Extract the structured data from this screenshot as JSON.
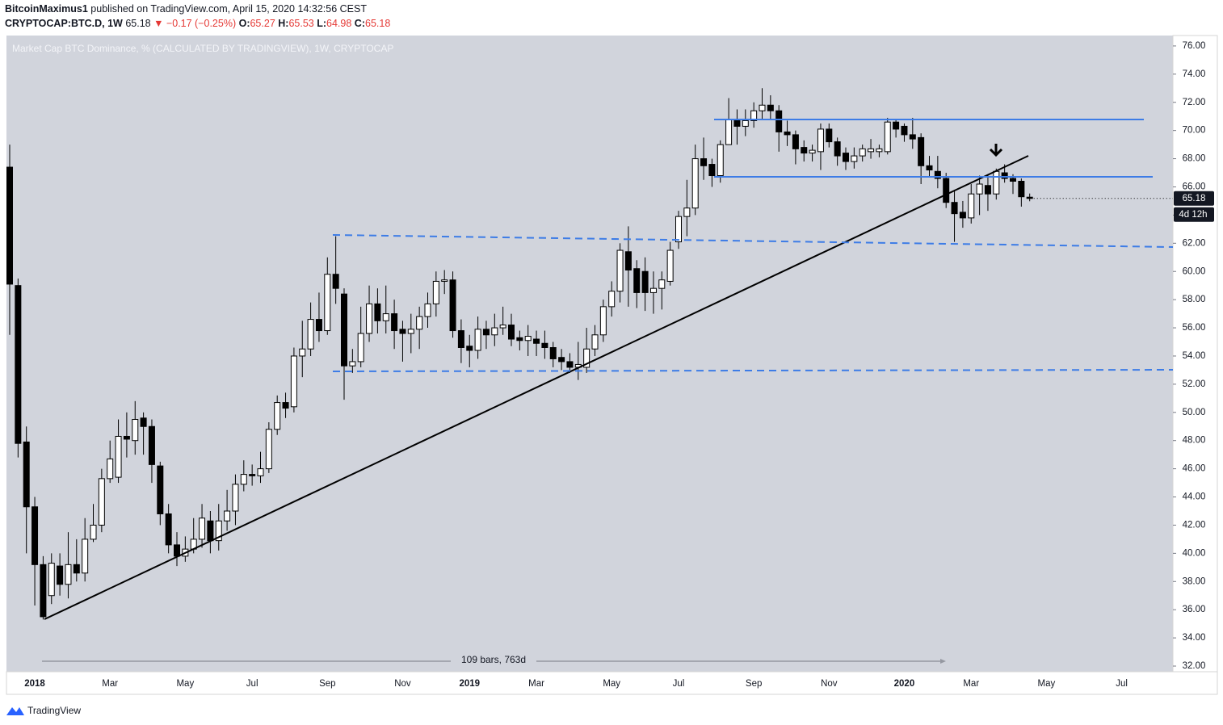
{
  "header": {
    "author": "BitcoinMaximus1",
    "published": "published on TradingView.com, April 15, 2020 14:32:56 CEST",
    "symbol": "CRYPTOCAP:BTC.D, 1W",
    "last": "65.18",
    "change": "▼ −0.17 (−0.25%)",
    "ohlc": [
      {
        "label": "O:",
        "value": "65.27"
      },
      {
        "label": "H:",
        "value": "65.53"
      },
      {
        "label": "L:",
        "value": "64.98"
      },
      {
        "label": "C:",
        "value": "65.18"
      }
    ]
  },
  "footer": {
    "brand": "TradingView"
  },
  "chart_data": {
    "type": "candlestick",
    "title": "Market Cap BTC Dominance, % (CALCULATED BY TRADINGVIEW), 1W, CRYPTOCAP",
    "categories": [
      null,
      null,
      null,
      "2018",
      null,
      null,
      null,
      null,
      null,
      null,
      null,
      null,
      "Mar",
      null,
      null,
      null,
      null,
      null,
      null,
      null,
      null,
      "May",
      null,
      null,
      null,
      null,
      null,
      null,
      null,
      "Jul",
      null,
      null,
      null,
      null,
      null,
      null,
      null,
      null,
      "Sep",
      null,
      null,
      null,
      null,
      null,
      null,
      null,
      null,
      "Nov",
      null,
      null,
      null,
      null,
      null,
      null,
      null,
      "2019",
      null,
      null,
      null,
      null,
      null,
      null,
      null,
      "Mar",
      null,
      null,
      null,
      null,
      null,
      null,
      null,
      null,
      "May",
      null,
      null,
      null,
      null,
      null,
      null,
      null,
      "Jul",
      null,
      null,
      null,
      null,
      null,
      null,
      null,
      null,
      "Sep",
      null,
      null,
      null,
      null,
      null,
      null,
      null,
      null,
      "Nov",
      null,
      null,
      null,
      null,
      null,
      null,
      null,
      null,
      "2020",
      null,
      null,
      null,
      null,
      null,
      null,
      null,
      "Mar",
      null,
      null,
      null,
      null,
      null,
      null,
      null,
      null,
      "May",
      null,
      null,
      null,
      null,
      null,
      null,
      null,
      null,
      "Jul",
      null,
      null,
      null,
      null,
      null,
      null
    ],
    "open": [
      67.4,
      59,
      47.9,
      43.3,
      39.2,
      37,
      39.1,
      37.8,
      39.2,
      38.6,
      41,
      42,
      45.3,
      45.4,
      48.3,
      48,
      49.6,
      49,
      46.2,
      42.8,
      40.6,
      39.8,
      40.3,
      41,
      42.3,
      40.9,
      42.3,
      43,
      44.9,
      45.6,
      45.5,
      46,
      48.8,
      50.7,
      50.4,
      54,
      54.5,
      56.6,
      55.8,
      59.8,
      58.4,
      53.3,
      53.6,
      55.6,
      57.7,
      56.5,
      57,
      55.9,
      55.6,
      55.9,
      56.8,
      57.7,
      59.3,
      59.4,
      55.8,
      54.7,
      54.4,
      55.9,
      55.5,
      56,
      56.2,
      55.3,
      55.1,
      55.2,
      54.9,
      54.6,
      53.9,
      53.6,
      53.2,
      53.2,
      54.5,
      55.5,
      57.5,
      58.6,
      61.4,
      60.2,
      60,
      58.5,
      58.8,
      59.3,
      62.1,
      63.9,
      64.5,
      68,
      67.6,
      66.8,
      69,
      70.8,
      70.3,
      70.7,
      71.4,
      71.8,
      71.4,
      69.9,
      69.7,
      68.8,
      68.4,
      68.5,
      70.1,
      69.2,
      68.4,
      67.8,
      68.2,
      68.5,
      68.5,
      68.5,
      70.6,
      70.3,
      69.7,
      69.5,
      67.5,
      67.1,
      66.6,
      64.9,
      64.2,
      63.8,
      65.5,
      66.1,
      65.5,
      67,
      66.6,
      66.4,
      65.27,
      null,
      null,
      null,
      null,
      null,
      null,
      null,
      null,
      null,
      null,
      null,
      null,
      null,
      null,
      null,
      null,
      null
    ],
    "high": [
      69,
      59.5,
      49,
      44,
      39.8,
      40,
      40,
      41.5,
      41,
      42.5,
      43.5,
      46,
      48,
      49.5,
      50,
      50.8,
      50,
      49.5,
      46.5,
      43.5,
      41.5,
      41.2,
      42.5,
      43.5,
      43,
      43.5,
      44.5,
      45.6,
      46.6,
      46.3,
      47.2,
      49.3,
      51.2,
      51.4,
      54.6,
      56.5,
      57.8,
      58.5,
      61,
      62.5,
      58.8,
      54.5,
      57.5,
      59,
      58.8,
      59,
      58,
      56.5,
      57,
      57.5,
      58.5,
      60,
      60.1,
      60,
      56.6,
      55.5,
      56.8,
      56.5,
      57,
      57.5,
      57,
      55.8,
      56.2,
      55.8,
      55.8,
      55,
      54.5,
      54.2,
      55,
      56,
      56.2,
      58,
      59.3,
      62,
      63.2,
      60.8,
      61,
      60,
      60,
      62.1,
      64.3,
      66.5,
      69,
      69.5,
      68,
      69.3,
      72.3,
      71.5,
      71.5,
      72,
      73,
      72.5,
      71.8,
      70.7,
      70,
      69.3,
      69,
      70.5,
      70.5,
      69.5,
      68.8,
      68.8,
      69,
      69.4,
      69,
      70.9,
      70.8,
      70.5,
      70.9,
      69.8,
      68.2,
      68.2,
      67,
      65.8,
      65,
      66.2,
      66.8,
      66.9,
      67.3,
      67.6,
      66.9,
      66.6,
      65.53,
      null,
      null,
      null,
      null,
      null,
      null,
      null,
      null,
      null,
      null,
      null,
      null,
      null,
      null,
      null,
      null,
      null
    ],
    "low": [
      55.5,
      46.8,
      40,
      36.3,
      35.3,
      36.4,
      37,
      36.8,
      38,
      38,
      40.8,
      41.5,
      45,
      45,
      46.8,
      47,
      47,
      45,
      42,
      40,
      39.1,
      39.4,
      40,
      40.4,
      40,
      40.2,
      41.6,
      42,
      44.4,
      44.8,
      45,
      45.7,
      48.4,
      49.6,
      50,
      52.5,
      54,
      55,
      55.5,
      57.7,
      50.9,
      52.8,
      53.2,
      55,
      55.6,
      55.6,
      54.5,
      53.6,
      54.2,
      54.5,
      56,
      56.8,
      58.4,
      55.3,
      53.5,
      53.2,
      53.8,
      54.5,
      54.7,
      55.5,
      54.7,
      54.4,
      54,
      54,
      53.8,
      53.2,
      53,
      52.8,
      52.3,
      52.8,
      54,
      55,
      56.8,
      57.8,
      57.5,
      57.4,
      57.2,
      57,
      57.3,
      59,
      61.6,
      62.5,
      64,
      66.5,
      66,
      66.3,
      69,
      69,
      69.6,
      70.2,
      70.8,
      70.8,
      68.5,
      68.9,
      67.6,
      67.8,
      67.8,
      67.2,
      68.8,
      67.5,
      67.2,
      67.3,
      67.8,
      68,
      68.1,
      68.3,
      69.5,
      69.2,
      68.7,
      66.2,
      66.7,
      65.9,
      64.5,
      62.1,
      63.1,
      63.4,
      64,
      64.3,
      65.1,
      66.3,
      65.5,
      64.6,
      64.98,
      null,
      null,
      null,
      null,
      null,
      null,
      null,
      null,
      null,
      null,
      null,
      null,
      null,
      null,
      null,
      null,
      null
    ],
    "close": [
      59.1,
      47.8,
      43.3,
      39.2,
      35.5,
      39.3,
      37.8,
      39.2,
      38.6,
      41,
      42,
      45.3,
      46.7,
      48.3,
      48.1,
      49.5,
      49,
      46.3,
      42.8,
      40.6,
      39.8,
      40.3,
      41,
      42.5,
      40.9,
      42.3,
      43,
      44.9,
      45.6,
      45.5,
      46,
      48.8,
      50.7,
      50.3,
      54,
      54.5,
      56.6,
      55.8,
      59.8,
      58.8,
      53.3,
      53.6,
      55.6,
      57.7,
      56.5,
      57,
      55.8,
      55.6,
      55.9,
      56.8,
      57.7,
      59.3,
      59.4,
      55.8,
      54.6,
      54.4,
      55.9,
      55.5,
      56,
      56.2,
      55.2,
      55.1,
      55.4,
      54.9,
      54.6,
      53.8,
      53.6,
      53.2,
      53.4,
      54.5,
      55.5,
      57.5,
      58.6,
      61.5,
      60.1,
      58.5,
      58.5,
      58.8,
      59.4,
      61.5,
      63.9,
      64.5,
      68,
      67.5,
      66.8,
      69,
      70.8,
      70.3,
      70.7,
      71.4,
      71.8,
      71.4,
      69.9,
      69.7,
      68.7,
      68.4,
      68.6,
      70.1,
      69.2,
      68.2,
      67.8,
      68.2,
      68.7,
      68.7,
      68.7,
      70.6,
      70.1,
      69.7,
      69.4,
      67.5,
      67.2,
      66.6,
      64.9,
      64.1,
      63.8,
      65.5,
      66.2,
      65.5,
      67.1,
      66.6,
      66.4,
      65.3,
      65.18,
      null,
      null,
      null,
      null,
      null,
      null,
      null,
      null,
      null,
      null,
      null,
      null,
      null,
      null,
      null,
      null,
      null
    ],
    "up_color": "#ffffff",
    "down_color": "#000000",
    "edge_color": "#000000",
    "ylim": [
      31.6,
      76.74
    ],
    "yticks": [
      {
        "value": 32,
        "label": "32.00"
      },
      {
        "value": 34,
        "label": "34.00"
      },
      {
        "value": 36,
        "label": "36.00"
      },
      {
        "value": 38,
        "label": "38.00"
      },
      {
        "value": 40,
        "label": "40.00"
      },
      {
        "value": 42,
        "label": "42.00"
      },
      {
        "value": 44,
        "label": "44.00"
      },
      {
        "value": 46,
        "label": "46.00"
      },
      {
        "value": 48,
        "label": "48.00"
      },
      {
        "value": 50,
        "label": "50.00"
      },
      {
        "value": 52,
        "label": "52.00"
      },
      {
        "value": 54,
        "label": "54.00"
      },
      {
        "value": 56,
        "label": "56.00"
      },
      {
        "value": 58,
        "label": "58.00"
      },
      {
        "value": 60,
        "label": "60.00"
      },
      {
        "value": 62,
        "label": "62.00"
      },
      {
        "value": 64,
        "label": "64.00"
      },
      {
        "value": 66,
        "label": "66.00"
      },
      {
        "value": 68,
        "label": "68.00"
      },
      {
        "value": 70,
        "label": "70.00"
      },
      {
        "value": 72,
        "label": "72.00"
      },
      {
        "value": 74,
        "label": "74.00"
      },
      {
        "value": 76,
        "label": "76.00"
      }
    ],
    "grid": false,
    "countdown": "4d 12h",
    "measure": "109 bars, 763d"
  }
}
